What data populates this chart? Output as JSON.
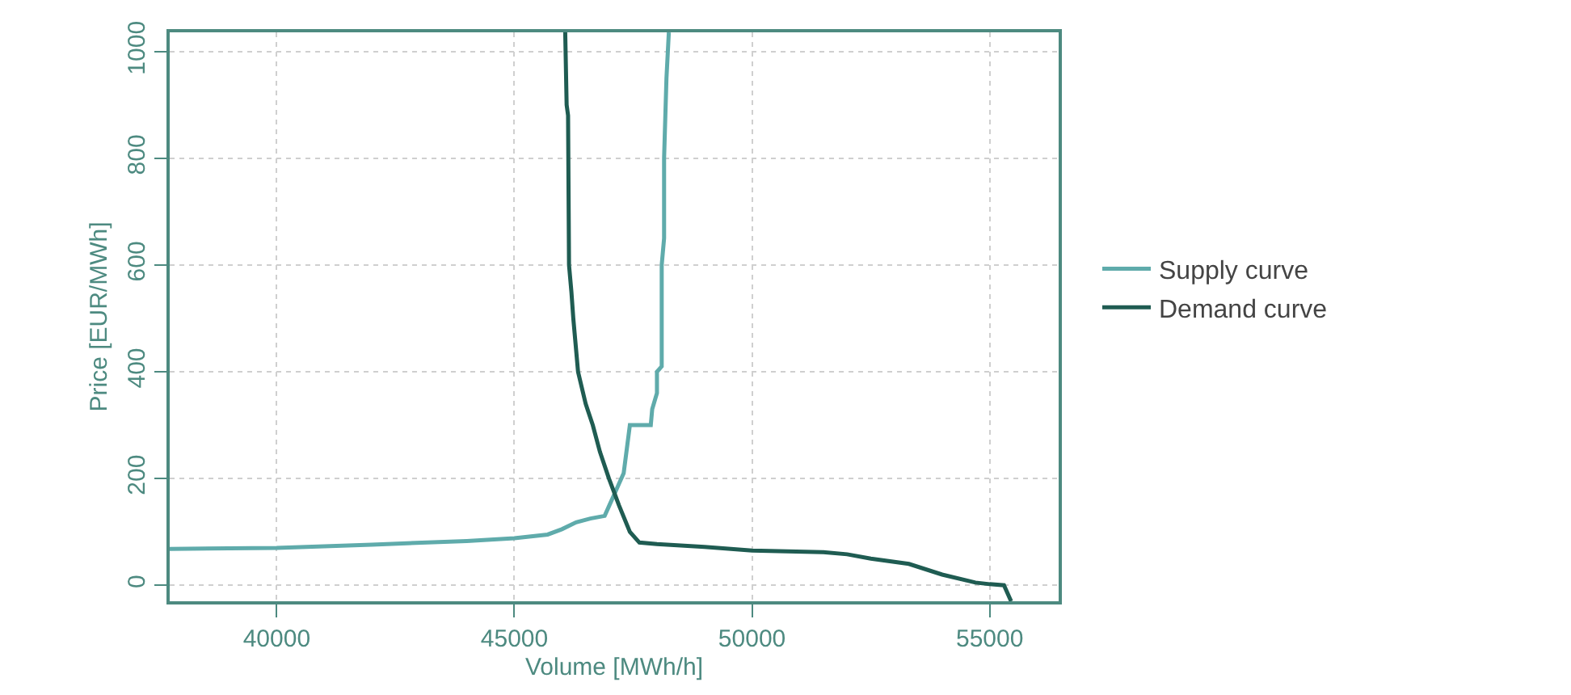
{
  "chart_data": {
    "type": "line",
    "xlabel": "Volume [MWh/h]",
    "ylabel": "Price [EUR/MWh]",
    "xlim": [
      37750,
      56450
    ],
    "ylim": [
      -30,
      1036
    ],
    "xticks": [
      40000,
      45000,
      50000,
      55000
    ],
    "yticks": [
      0,
      200,
      400,
      600,
      800,
      1000
    ],
    "grid": true,
    "legend": "right",
    "line_style": "solid",
    "marker": "none",
    "series": [
      {
        "name": "Supply curve",
        "color": "#5fabab",
        "x": [
          37750,
          40000,
          42000,
          44000,
          45000,
          45700,
          46000,
          46300,
          46600,
          46900,
          47000,
          47100,
          47200,
          47300,
          47430,
          47870,
          47900,
          48000,
          48000,
          48100,
          48100,
          48150,
          48150,
          48200,
          48250
        ],
        "values": [
          68,
          70,
          76,
          83,
          88,
          95,
          105,
          118,
          125,
          130,
          150,
          170,
          190,
          210,
          300,
          300,
          330,
          360,
          400,
          410,
          600,
          650,
          800,
          950,
          1036
        ]
      },
      {
        "name": "Demand curve",
        "color": "#1f5c52",
        "x": [
          46070,
          46100,
          46130,
          46150,
          46200,
          46240,
          46340,
          46500,
          46650,
          46800,
          46990,
          47200,
          47430,
          47630,
          48000,
          49000,
          50000,
          51500,
          52000,
          52500,
          53300,
          54000,
          54700,
          55000,
          55300,
          55450
        ],
        "values": [
          1036,
          900,
          880,
          600,
          550,
          500,
          400,
          340,
          300,
          250,
          200,
          150,
          100,
          80,
          77,
          72,
          65,
          62,
          58,
          50,
          40,
          20,
          5,
          2,
          0,
          -30
        ]
      }
    ]
  }
}
